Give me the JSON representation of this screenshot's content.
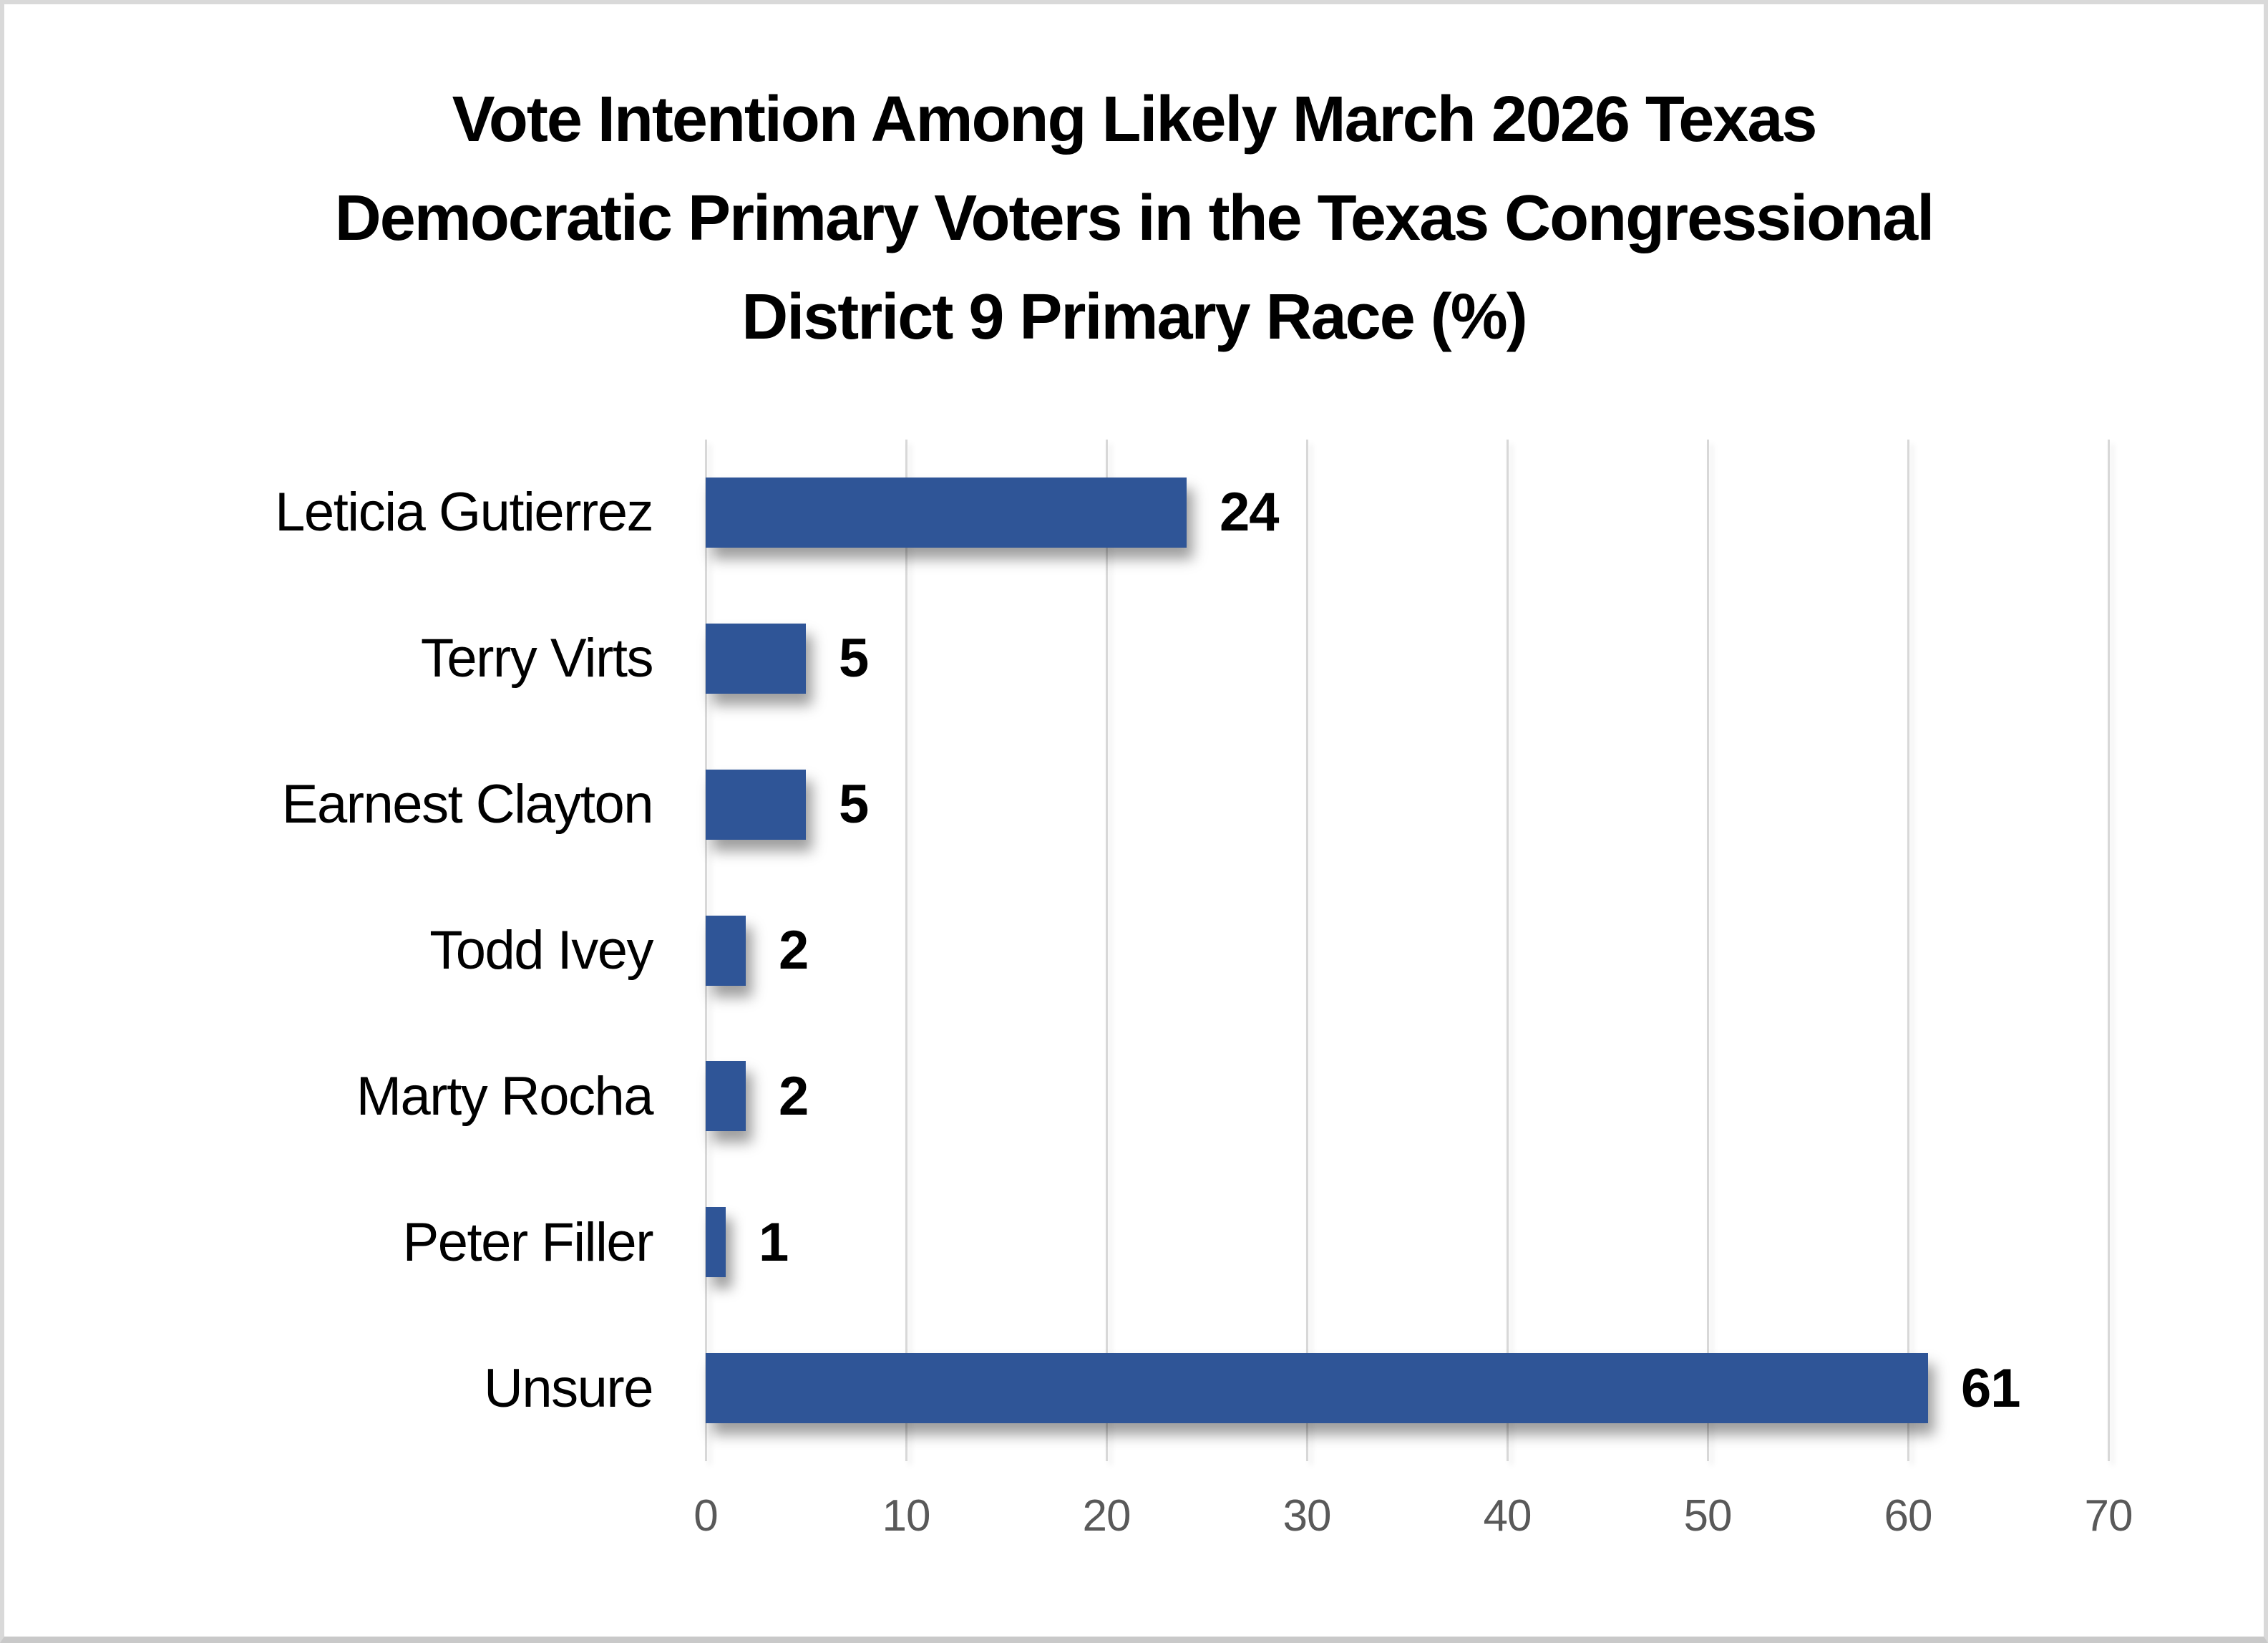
{
  "chart_data": {
    "type": "bar",
    "orientation": "horizontal",
    "title": "Vote Intention Among Likely March 2026 Texas Democratic Primary Voters in the Texas Congressional District 9 Primary Race (%)",
    "title_lines": [
      "Vote Intention Among Likely March 2026 Texas",
      "Democratic Primary Voters in the Texas Congressional",
      "District 9 Primary Race (%)"
    ],
    "categories": [
      "Leticia Gutierrez",
      "Terry Virts",
      "Earnest Clayton",
      "Todd Ivey",
      "Marty Rocha",
      "Peter Filler",
      "Unsure"
    ],
    "values": [
      24,
      5,
      5,
      2,
      2,
      1,
      61
    ],
    "data_labels": [
      "24",
      "5",
      "5",
      "2",
      "2",
      "1",
      "61"
    ],
    "x_ticks": [
      0,
      10,
      20,
      30,
      40,
      50,
      60,
      70
    ],
    "xlim": [
      0,
      70
    ],
    "xlabel": "",
    "ylabel": "",
    "grid": true,
    "legend": false,
    "colors": {
      "bar": "#2F5597",
      "gridline": "#D8D8D8",
      "tick_label": "#595959",
      "text": "#000000",
      "background": "#FFFFFF",
      "border": "#D9D9D9"
    }
  }
}
